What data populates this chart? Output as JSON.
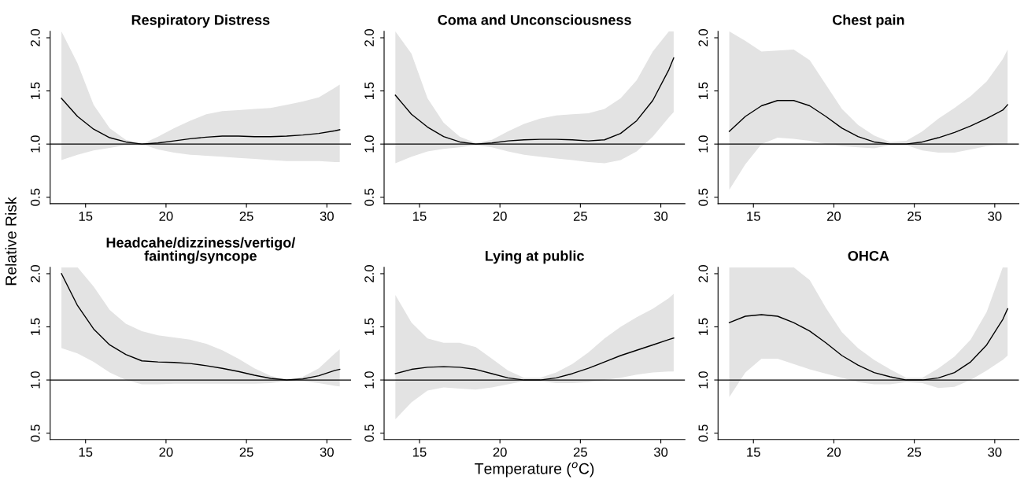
{
  "chart_data": [
    {
      "type": "line",
      "title": "Respiratory Distress",
      "ylabel": "Relative Risk",
      "x": [
        13.5,
        14.5,
        15.5,
        16.5,
        17.5,
        18.5,
        19.5,
        20.5,
        21.5,
        22.5,
        23.5,
        24.5,
        25.5,
        26.5,
        27.5,
        28.5,
        29.5,
        30.5,
        30.8
      ],
      "series": [
        {
          "color": "#000000",
          "values": [
            1.43,
            1.26,
            1.14,
            1.06,
            1.02,
            1.0,
            1.01,
            1.03,
            1.05,
            1.065,
            1.075,
            1.075,
            1.07,
            1.07,
            1.075,
            1.085,
            1.1,
            1.125,
            1.135
          ],
          "upper": [
            2.06,
            1.76,
            1.37,
            1.15,
            1.04,
            1.0,
            1.07,
            1.15,
            1.22,
            1.28,
            1.31,
            1.32,
            1.33,
            1.34,
            1.37,
            1.4,
            1.44,
            1.53,
            1.56
          ],
          "lower": [
            0.85,
            0.9,
            0.94,
            0.965,
            0.99,
            1.0,
            0.95,
            0.92,
            0.9,
            0.89,
            0.88,
            0.87,
            0.86,
            0.85,
            0.84,
            0.84,
            0.84,
            0.83,
            0.83
          ]
        }
      ],
      "xlim": [
        12.8,
        31.5
      ],
      "ylim": [
        0.44,
        2.06
      ],
      "xticks": [
        15,
        20,
        25,
        30
      ],
      "yticks": [
        {
          "value": 0.5,
          "label": "0.5"
        },
        {
          "value": 1.0,
          "label": "1.0"
        },
        {
          "value": 1.5,
          "label": "1.5"
        },
        {
          "value": 2.0,
          "label": "2.0"
        }
      ],
      "ref_lines": [
        {
          "axis": "y",
          "value": 1.0,
          "color": "#000000"
        }
      ],
      "grid": false,
      "legend": false
    },
    {
      "type": "line",
      "title": "Coma and Unconsciousness",
      "x": [
        13.5,
        14.5,
        15.5,
        16.5,
        17.5,
        18.5,
        19.5,
        20.5,
        21.5,
        22.5,
        23.5,
        24.5,
        25.5,
        26.5,
        27.5,
        28.5,
        29.5,
        30.5,
        30.8
      ],
      "series": [
        {
          "color": "#000000",
          "values": [
            1.46,
            1.28,
            1.16,
            1.07,
            1.02,
            1.0,
            1.01,
            1.03,
            1.04,
            1.045,
            1.045,
            1.04,
            1.03,
            1.04,
            1.1,
            1.22,
            1.41,
            1.7,
            1.81
          ],
          "upper": [
            2.06,
            1.85,
            1.43,
            1.2,
            1.07,
            1.01,
            1.04,
            1.12,
            1.19,
            1.24,
            1.27,
            1.28,
            1.29,
            1.33,
            1.43,
            1.6,
            1.87,
            2.06,
            2.06
          ],
          "lower": [
            0.82,
            0.88,
            0.93,
            0.955,
            0.97,
            0.99,
            0.97,
            0.93,
            0.9,
            0.88,
            0.865,
            0.85,
            0.83,
            0.82,
            0.85,
            0.93,
            1.07,
            1.25,
            1.3
          ]
        }
      ],
      "xlim": [
        12.8,
        31.5
      ],
      "ylim": [
        0.44,
        2.06
      ],
      "xticks": [
        15,
        20,
        25,
        30
      ],
      "yticks": [
        {
          "value": 0.5,
          "label": "0.5"
        },
        {
          "value": 1.0,
          "label": "1.0"
        },
        {
          "value": 1.5,
          "label": "1.5"
        },
        {
          "value": 2.0,
          "label": "2.0"
        }
      ],
      "ref_lines": [
        {
          "axis": "y",
          "value": 1.0,
          "color": "#000000"
        }
      ],
      "grid": false,
      "legend": false
    },
    {
      "type": "line",
      "title": "Chest pain",
      "x": [
        13.5,
        14.5,
        15.5,
        16.5,
        17.5,
        18.5,
        19.5,
        20.5,
        21.5,
        22.5,
        23.5,
        24.5,
        25.5,
        26.5,
        27.5,
        28.5,
        29.5,
        30.5,
        30.8
      ],
      "series": [
        {
          "color": "#000000",
          "values": [
            1.12,
            1.26,
            1.36,
            1.41,
            1.41,
            1.36,
            1.26,
            1.15,
            1.07,
            1.02,
            1.0,
            1.0,
            1.02,
            1.06,
            1.11,
            1.17,
            1.24,
            1.32,
            1.37
          ],
          "upper": [
            2.06,
            1.97,
            1.87,
            1.88,
            1.89,
            1.79,
            1.56,
            1.33,
            1.18,
            1.08,
            1.02,
            1.03,
            1.12,
            1.24,
            1.34,
            1.45,
            1.59,
            1.8,
            1.89
          ],
          "lower": [
            0.57,
            0.81,
            1.0,
            1.06,
            1.05,
            1.03,
            1.0,
            0.98,
            0.97,
            0.96,
            0.99,
            0.99,
            0.94,
            0.92,
            0.92,
            0.95,
            0.98,
            1.0,
            1.0
          ]
        }
      ],
      "xlim": [
        12.8,
        31.5
      ],
      "ylim": [
        0.44,
        2.06
      ],
      "xticks": [
        15,
        20,
        25,
        30
      ],
      "yticks": [
        {
          "value": 0.5,
          "label": "0.5"
        },
        {
          "value": 1.0,
          "label": "1.0"
        },
        {
          "value": 1.5,
          "label": "1.5"
        },
        {
          "value": 2.0,
          "label": "2.0"
        }
      ],
      "ref_lines": [
        {
          "axis": "y",
          "value": 1.0,
          "color": "#000000"
        }
      ],
      "grid": false,
      "legend": false
    },
    {
      "type": "line",
      "title": "Headcahe/dizziness/vertigo/\nfainting/syncope",
      "x": [
        13.5,
        14.5,
        15.5,
        16.5,
        17.5,
        18.5,
        19.5,
        20.5,
        21.5,
        22.5,
        23.5,
        24.5,
        25.5,
        26.5,
        27.5,
        28.5,
        29.5,
        30.5,
        30.8
      ],
      "series": [
        {
          "color": "#000000",
          "values": [
            2.0,
            1.7,
            1.48,
            1.33,
            1.24,
            1.18,
            1.17,
            1.165,
            1.155,
            1.135,
            1.11,
            1.08,
            1.045,
            1.015,
            1.0,
            1.01,
            1.04,
            1.09,
            1.1
          ],
          "upper": [
            2.06,
            2.06,
            1.88,
            1.66,
            1.53,
            1.46,
            1.42,
            1.4,
            1.38,
            1.34,
            1.28,
            1.2,
            1.11,
            1.04,
            1.0,
            1.03,
            1.11,
            1.25,
            1.29
          ],
          "lower": [
            1.3,
            1.25,
            1.17,
            1.07,
            1.0,
            0.96,
            0.96,
            0.965,
            0.965,
            0.965,
            0.965,
            0.965,
            0.965,
            0.97,
            0.99,
            0.99,
            0.97,
            0.945,
            0.94
          ]
        }
      ],
      "xlim": [
        12.8,
        31.5
      ],
      "ylim": [
        0.44,
        2.06
      ],
      "xticks": [
        15,
        20,
        25,
        30
      ],
      "yticks": [
        {
          "value": 0.5,
          "label": "0.5"
        },
        {
          "value": 1.0,
          "label": "1.0"
        },
        {
          "value": 1.5,
          "label": "1.5"
        },
        {
          "value": 2.0,
          "label": "2.0"
        }
      ],
      "ref_lines": [
        {
          "axis": "y",
          "value": 1.0,
          "color": "#000000"
        }
      ],
      "grid": false,
      "legend": false
    },
    {
      "type": "line",
      "title": "Lying at public",
      "xlabel": "Temperature ($^{o}$C)",
      "x": [
        13.5,
        14.5,
        15.5,
        16.5,
        17.5,
        18.5,
        19.5,
        20.5,
        21.5,
        22.5,
        23.5,
        24.5,
        25.5,
        26.5,
        27.5,
        28.5,
        29.5,
        30.5,
        30.8
      ],
      "series": [
        {
          "color": "#000000",
          "values": [
            1.06,
            1.1,
            1.12,
            1.125,
            1.12,
            1.1,
            1.06,
            1.02,
            1.0,
            1.0,
            1.02,
            1.06,
            1.11,
            1.17,
            1.23,
            1.28,
            1.33,
            1.38,
            1.395
          ],
          "upper": [
            1.8,
            1.54,
            1.39,
            1.35,
            1.35,
            1.31,
            1.2,
            1.09,
            1.02,
            1.02,
            1.07,
            1.15,
            1.26,
            1.39,
            1.5,
            1.59,
            1.67,
            1.77,
            1.81
          ],
          "lower": [
            0.63,
            0.79,
            0.9,
            0.93,
            0.92,
            0.91,
            0.93,
            0.96,
            0.99,
            0.99,
            0.97,
            0.97,
            0.98,
            1.0,
            1.02,
            1.05,
            1.07,
            1.08,
            1.08
          ]
        }
      ],
      "xlim": [
        12.8,
        31.5
      ],
      "ylim": [
        0.44,
        2.06
      ],
      "xticks": [
        15,
        20,
        25,
        30
      ],
      "yticks": [
        {
          "value": 0.5,
          "label": "0.5"
        },
        {
          "value": 1.0,
          "label": "1.0"
        },
        {
          "value": 1.5,
          "label": "1.5"
        },
        {
          "value": 2.0,
          "label": "2.0"
        }
      ],
      "ref_lines": [
        {
          "axis": "y",
          "value": 1.0,
          "color": "#000000"
        }
      ],
      "grid": false,
      "legend": false
    },
    {
      "type": "line",
      "title": "OHCA",
      "x": [
        13.5,
        14.5,
        15.5,
        16.5,
        17.5,
        18.5,
        19.5,
        20.5,
        21.5,
        22.5,
        23.5,
        24.5,
        25.5,
        26.5,
        27.5,
        28.5,
        29.5,
        30.5,
        30.8
      ],
      "series": [
        {
          "color": "#000000",
          "values": [
            1.54,
            1.6,
            1.615,
            1.6,
            1.54,
            1.46,
            1.35,
            1.23,
            1.14,
            1.07,
            1.03,
            1.0,
            1.0,
            1.02,
            1.07,
            1.17,
            1.33,
            1.57,
            1.67
          ],
          "upper": [
            2.06,
            2.06,
            2.06,
            2.06,
            2.06,
            1.94,
            1.68,
            1.45,
            1.3,
            1.19,
            1.1,
            1.02,
            1.02,
            1.11,
            1.22,
            1.38,
            1.64,
            2.06,
            2.06
          ],
          "lower": [
            0.84,
            1.07,
            1.2,
            1.2,
            1.15,
            1.1,
            1.06,
            1.02,
            0.98,
            0.96,
            0.96,
            0.98,
            0.97,
            0.925,
            0.935,
            1.0,
            1.09,
            1.19,
            1.23
          ]
        }
      ],
      "xlim": [
        12.8,
        31.5
      ],
      "ylim": [
        0.44,
        2.06
      ],
      "xticks": [
        15,
        20,
        25,
        30
      ],
      "yticks": [
        {
          "value": 0.5,
          "label": "0.5"
        },
        {
          "value": 1.0,
          "label": "1.0"
        },
        {
          "value": 1.5,
          "label": "1.5"
        },
        {
          "value": 2.0,
          "label": "2.0"
        }
      ],
      "ref_lines": [
        {
          "axis": "y",
          "value": 1.0,
          "color": "#000000"
        }
      ],
      "grid": false,
      "legend": false
    }
  ]
}
